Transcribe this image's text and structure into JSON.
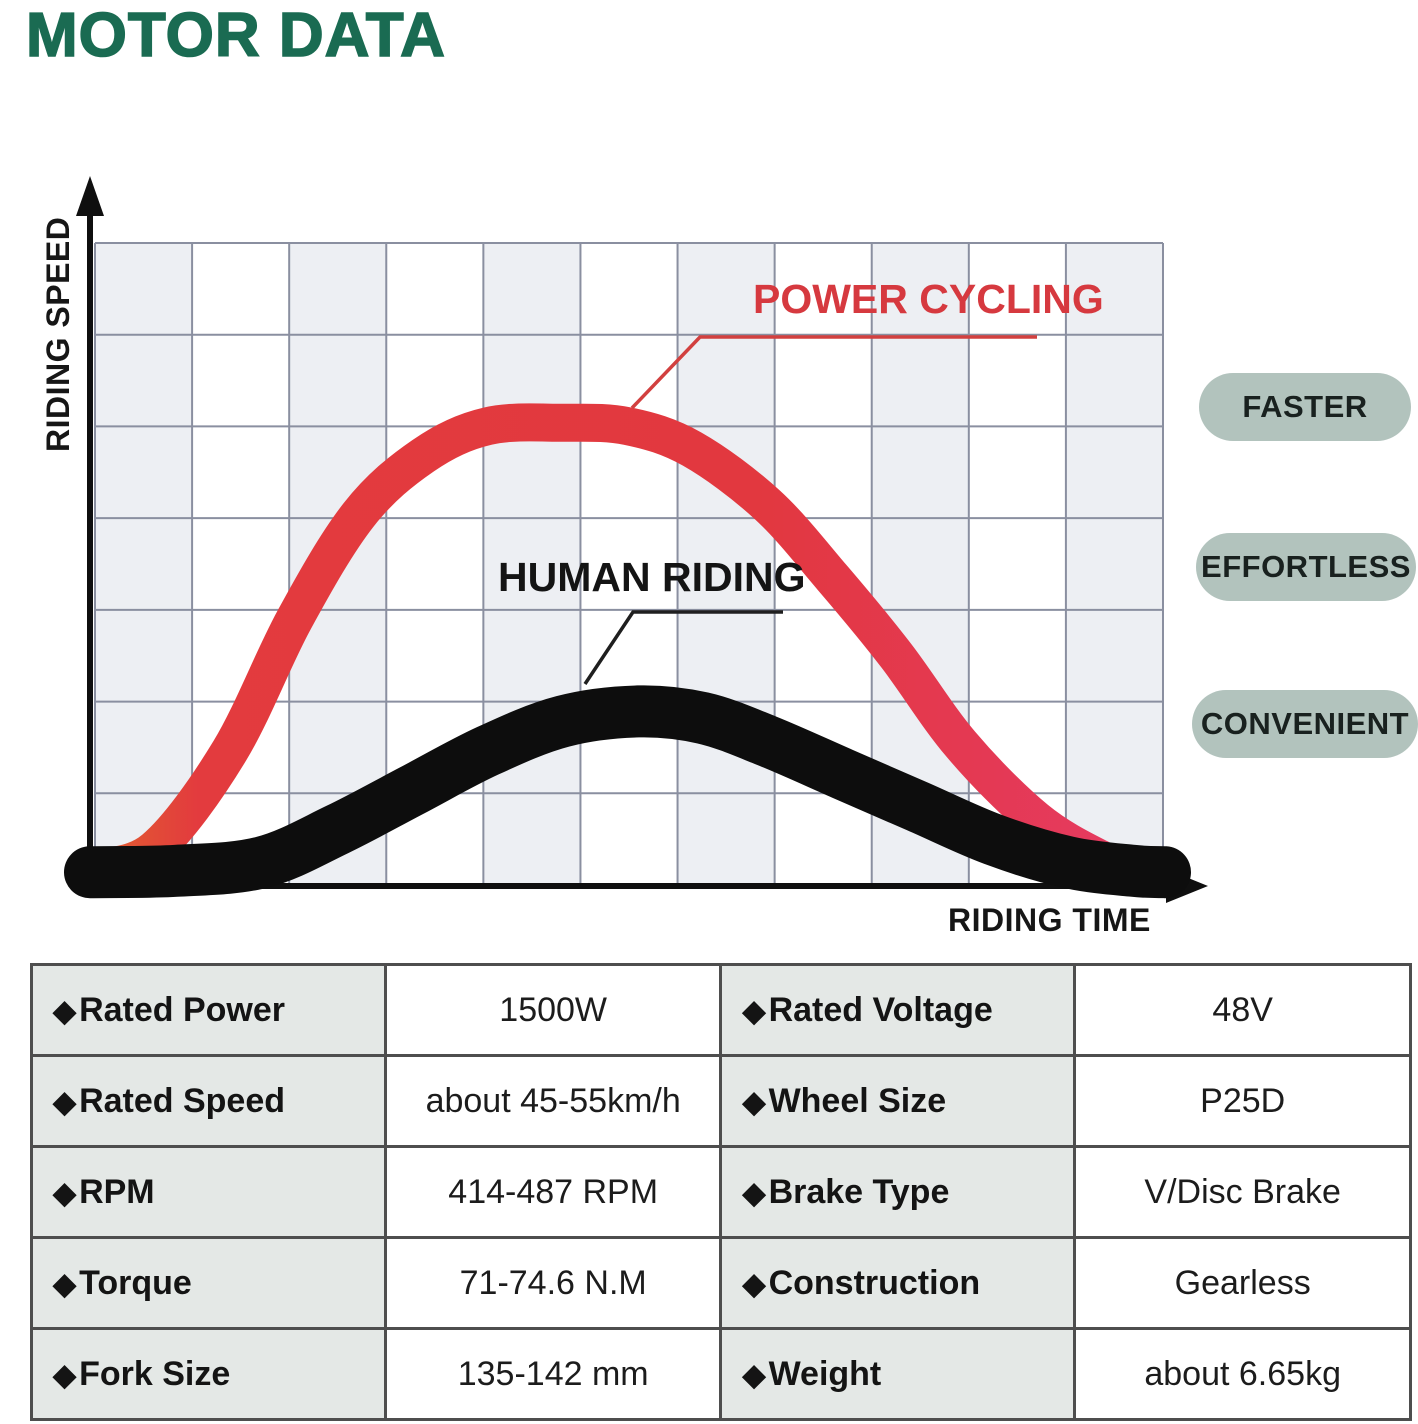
{
  "title": "MOTOR DATA",
  "colors": {
    "title-green": "#1A6B52",
    "power-red": "#E23B41",
    "human-black": "#0D0D0D",
    "badge-bg": "#B2C3BD",
    "badge-text": "#19211F",
    "grid-line": "#8A8FA0",
    "grid-fill": "#EDEFF3",
    "table-label-bg": "#E4E8E6",
    "table-border": "#4E4E4E"
  },
  "chart_data": {
    "type": "line",
    "title": "",
    "xlabel": "RIDING TIME",
    "ylabel": "RIDING SPEED",
    "x_range": [
      0,
      1
    ],
    "y_range": [
      0,
      1
    ],
    "grid": {
      "columns": 11,
      "rows": 7,
      "alternating_column_shading": true,
      "tick_labels": "none"
    },
    "legend_position": "inline-callouts",
    "series": [
      {
        "name": "POWER CYCLING",
        "label_color": "#D6393F",
        "stroke_width": 38,
        "gradient": [
          "#E0622E",
          "#E33B3E",
          "#E2383F",
          "#E63A64"
        ],
        "points": [
          [
            0,
            0.02
          ],
          [
            0.06,
            0.05
          ],
          [
            0.13,
            0.2
          ],
          [
            0.19,
            0.4
          ],
          [
            0.25,
            0.56
          ],
          [
            0.31,
            0.65
          ],
          [
            0.37,
            0.695
          ],
          [
            0.44,
            0.7
          ],
          [
            0.5,
            0.695
          ],
          [
            0.56,
            0.66
          ],
          [
            0.63,
            0.575
          ],
          [
            0.69,
            0.465
          ],
          [
            0.75,
            0.345
          ],
          [
            0.81,
            0.21
          ],
          [
            0.88,
            0.095
          ],
          [
            0.94,
            0.035
          ],
          [
            0.97,
            0.02
          ]
        ]
      },
      {
        "name": "HUMAN RIDING",
        "label_color": "#141414",
        "stroke_width": 52,
        "color": "#0D0D0D",
        "points": [
          [
            0,
            0.015
          ],
          [
            0.08,
            0.017
          ],
          [
            0.16,
            0.03
          ],
          [
            0.23,
            0.08
          ],
          [
            0.3,
            0.14
          ],
          [
            0.37,
            0.2
          ],
          [
            0.44,
            0.245
          ],
          [
            0.51,
            0.26
          ],
          [
            0.57,
            0.25
          ],
          [
            0.63,
            0.215
          ],
          [
            0.7,
            0.165
          ],
          [
            0.77,
            0.115
          ],
          [
            0.84,
            0.065
          ],
          [
            0.91,
            0.03
          ],
          [
            0.97,
            0.017
          ],
          [
            1.0,
            0.015
          ]
        ]
      }
    ]
  },
  "badges": [
    "FASTER",
    "EFFORTLESS",
    "CONVENIENT"
  ],
  "table": {
    "bullet": "◆",
    "rows": [
      [
        {
          "label": "Rated Power",
          "value": "1500W"
        },
        {
          "label": "Rated Voltage",
          "value": "48V"
        }
      ],
      [
        {
          "label": "Rated Speed",
          "value": "about 45-55km/h"
        },
        {
          "label": "Wheel Size",
          "value": "P25D"
        }
      ],
      [
        {
          "label": "RPM",
          "value": "414-487 RPM"
        },
        {
          "label": "Brake Type",
          "value": "V/Disc Brake"
        }
      ],
      [
        {
          "label": "Torque",
          "value": "71-74.6 N.M"
        },
        {
          "label": "Construction",
          "value": "Gearless"
        }
      ],
      [
        {
          "label": "Fork Size",
          "value": "135-142 mm"
        },
        {
          "label": "Weight",
          "value": "about 6.65kg"
        }
      ]
    ]
  }
}
